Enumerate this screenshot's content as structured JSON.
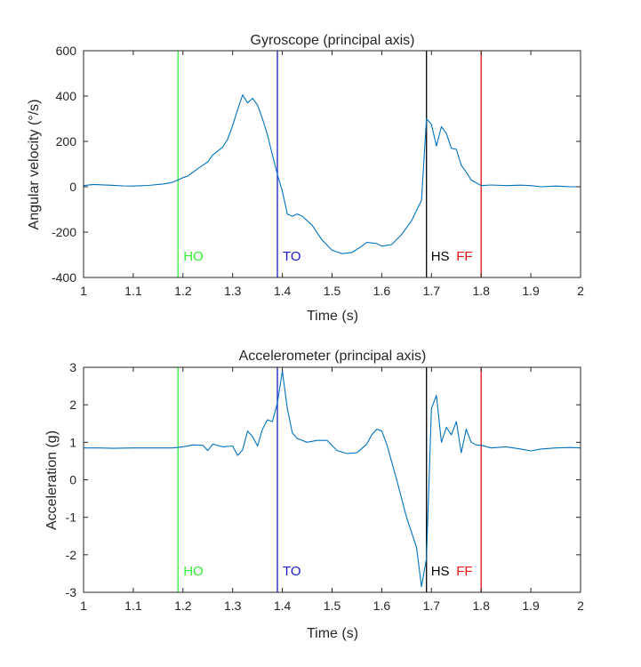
{
  "chart_data": [
    {
      "type": "line",
      "title": "Gyroscope (principal axis)",
      "xlabel": "Time (s)",
      "ylabel": "Angular velocity (°/s)",
      "xlim": [
        1,
        2
      ],
      "ylim": [
        -400,
        600
      ],
      "x_ticks": [
        "1",
        "1.1",
        "1.2",
        "1.3",
        "1.4",
        "1.5",
        "1.6",
        "1.7",
        "1.8",
        "1.9",
        "2"
      ],
      "y_ticks": [
        "-400",
        "-200",
        "0",
        "200",
        "400",
        "600"
      ],
      "grid": false,
      "line_color": "#0072bd",
      "series": [
        {
          "x": [
            1.0,
            1.02,
            1.05,
            1.08,
            1.1,
            1.13,
            1.16,
            1.18,
            1.2,
            1.21,
            1.23,
            1.25,
            1.26,
            1.28,
            1.29,
            1.3,
            1.31,
            1.32,
            1.33,
            1.34,
            1.35,
            1.36,
            1.37,
            1.38,
            1.39,
            1.4,
            1.41,
            1.42,
            1.43,
            1.44,
            1.46,
            1.48,
            1.5,
            1.52,
            1.54,
            1.56,
            1.57,
            1.59,
            1.6,
            1.62,
            1.64,
            1.66,
            1.68,
            1.69,
            1.7,
            1.71,
            1.72,
            1.73,
            1.74,
            1.75,
            1.76,
            1.77,
            1.78,
            1.8,
            1.82,
            1.85,
            1.88,
            1.9,
            1.92,
            1.95,
            1.98,
            2.0
          ],
          "y": [
            5,
            10,
            7,
            4,
            3,
            6,
            12,
            20,
            40,
            48,
            80,
            110,
            140,
            175,
            210,
            270,
            340,
            405,
            370,
            390,
            360,
            300,
            230,
            140,
            55,
            -20,
            -120,
            -130,
            -120,
            -130,
            -170,
            -235,
            -280,
            -295,
            -290,
            -262,
            -245,
            -250,
            -262,
            -255,
            -210,
            -150,
            -60,
            300,
            275,
            180,
            265,
            235,
            170,
            165,
            95,
            65,
            30,
            5,
            8,
            5,
            7,
            5,
            0,
            3,
            0,
            0
          ]
        }
      ],
      "events": [
        {
          "x": 1.19,
          "label": "HO",
          "color": "#33ee33"
        },
        {
          "x": 1.39,
          "label": "TO",
          "color": "#1a1acc"
        },
        {
          "x": 1.69,
          "label": "HS",
          "color": "#000000"
        },
        {
          "x": 1.8,
          "label": "FF",
          "color": "#ee1111"
        }
      ]
    },
    {
      "type": "line",
      "title": "Accelerometer (principal axis)",
      "xlabel": "Time (s)",
      "ylabel": "Acceleration (g)",
      "xlim": [
        1,
        2
      ],
      "ylim": [
        -3,
        3
      ],
      "x_ticks": [
        "1",
        "1.1",
        "1.2",
        "1.3",
        "1.4",
        "1.5",
        "1.6",
        "1.7",
        "1.8",
        "1.9",
        "2"
      ],
      "y_ticks": [
        "-3",
        "-2",
        "-1",
        "0",
        "1",
        "2",
        "3"
      ],
      "grid": false,
      "line_color": "#0072bd",
      "series": [
        {
          "x": [
            1.0,
            1.03,
            1.06,
            1.1,
            1.14,
            1.18,
            1.2,
            1.22,
            1.24,
            1.25,
            1.26,
            1.28,
            1.3,
            1.31,
            1.32,
            1.33,
            1.34,
            1.35,
            1.36,
            1.37,
            1.38,
            1.39,
            1.4,
            1.41,
            1.42,
            1.43,
            1.45,
            1.47,
            1.49,
            1.51,
            1.53,
            1.55,
            1.57,
            1.58,
            1.59,
            1.6,
            1.61,
            1.63,
            1.65,
            1.67,
            1.68,
            1.69,
            1.7,
            1.71,
            1.72,
            1.73,
            1.74,
            1.75,
            1.76,
            1.77,
            1.78,
            1.79,
            1.8,
            1.82,
            1.85,
            1.88,
            1.9,
            1.92,
            1.95,
            1.98,
            2.0
          ],
          "y": [
            0.85,
            0.85,
            0.84,
            0.85,
            0.85,
            0.85,
            0.88,
            0.93,
            0.92,
            0.78,
            0.95,
            0.88,
            0.9,
            0.65,
            0.8,
            1.3,
            1.15,
            0.9,
            1.35,
            1.6,
            1.55,
            2.05,
            2.9,
            1.9,
            1.25,
            1.1,
            1.0,
            1.05,
            1.05,
            0.78,
            0.7,
            0.72,
            0.95,
            1.2,
            1.35,
            1.3,
            0.95,
            0.0,
            -1.0,
            -1.8,
            -2.85,
            -2.1,
            1.9,
            2.25,
            1.0,
            1.4,
            1.2,
            1.55,
            0.72,
            1.35,
            1.0,
            0.93,
            0.92,
            0.85,
            0.88,
            0.82,
            0.77,
            0.82,
            0.85,
            0.86,
            0.85
          ]
        }
      ],
      "events": [
        {
          "x": 1.19,
          "label": "HO",
          "color": "#33ee33"
        },
        {
          "x": 1.39,
          "label": "TO",
          "color": "#1a1acc"
        },
        {
          "x": 1.69,
          "label": "HS",
          "color": "#000000"
        },
        {
          "x": 1.8,
          "label": "FF",
          "color": "#ee1111"
        }
      ]
    }
  ]
}
